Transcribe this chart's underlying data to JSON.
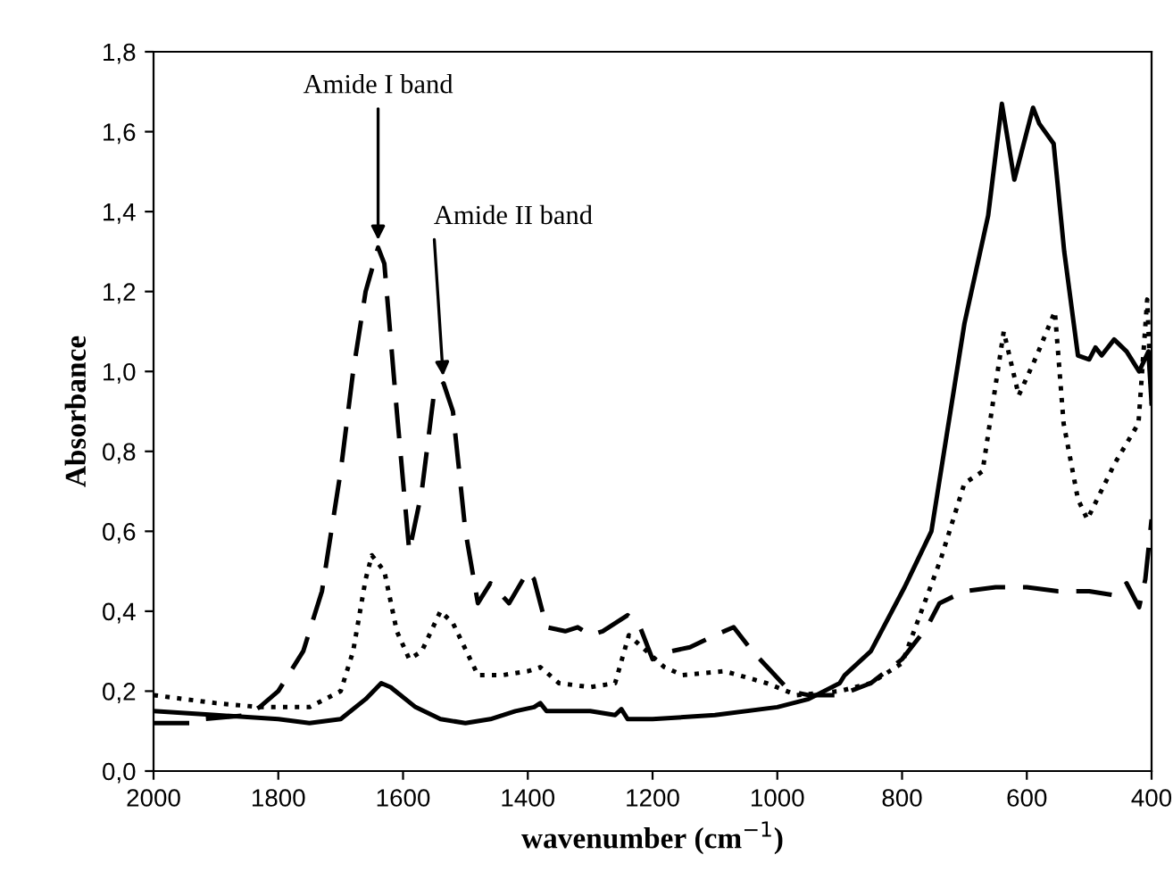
{
  "chart_data": {
    "type": "line",
    "xlabel": "wavenumber (cm$^{−1}$)",
    "ylabel": "Absorbance",
    "xlim": [
      2000,
      400
    ],
    "xticks": [
      2000,
      1800,
      1600,
      1400,
      1200,
      1000,
      800,
      600,
      400
    ],
    "ylim": [
      0,
      1.8
    ],
    "yticks": [
      {
        "value": 0,
        "label": "0,0"
      },
      {
        "value": 0.2,
        "label": "0,2"
      },
      {
        "value": 0.4,
        "label": "0,4"
      },
      {
        "value": 0.6,
        "label": "0,6"
      },
      {
        "value": 0.8,
        "label": "0,8"
      },
      {
        "value": 1.0,
        "label": "1,0"
      },
      {
        "value": 1.2,
        "label": "1,2"
      },
      {
        "value": 1.4,
        "label": "1,4"
      },
      {
        "value": 1.6,
        "label": "1,6"
      },
      {
        "value": 1.8,
        "label": "1,8"
      }
    ],
    "grid": false,
    "marker": "none",
    "series": [
      {
        "color": "#000000",
        "line_style": "solid",
        "x": [
          2000,
          1900,
          1800,
          1750,
          1700,
          1660,
          1635,
          1620,
          1580,
          1540,
          1500,
          1460,
          1420,
          1390,
          1380,
          1370,
          1300,
          1260,
          1250,
          1240,
          1200,
          1100,
          1000,
          950,
          900,
          892,
          850,
          796,
          753,
          700,
          662,
          640,
          620,
          600,
          590,
          580,
          557,
          540,
          518,
          500,
          490,
          480,
          460,
          440,
          420,
          405,
          400
        ],
        "values": [
          0.15,
          0.14,
          0.13,
          0.12,
          0.13,
          0.18,
          0.22,
          0.21,
          0.16,
          0.13,
          0.12,
          0.13,
          0.15,
          0.16,
          0.17,
          0.15,
          0.15,
          0.14,
          0.155,
          0.13,
          0.13,
          0.14,
          0.16,
          0.18,
          0.22,
          0.24,
          0.3,
          0.46,
          0.6,
          1.12,
          1.39,
          1.67,
          1.48,
          1.6,
          1.66,
          1.62,
          1.57,
          1.3,
          1.04,
          1.03,
          1.06,
          1.04,
          1.08,
          1.05,
          1.0,
          1.05,
          0.92
        ]
      },
      {
        "color": "#000000",
        "line_style": "dashed",
        "x": [
          2000,
          1930,
          1920,
          1850,
          1830,
          1800,
          1760,
          1730,
          1700,
          1680,
          1660,
          1640,
          1630,
          1610,
          1590,
          1570,
          1550,
          1535,
          1520,
          1500,
          1480,
          1460,
          1430,
          1400,
          1390,
          1370,
          1340,
          1320,
          1300,
          1280,
          1240,
          1220,
          1200,
          1170,
          1140,
          1100,
          1070,
          1040,
          1010,
          980,
          950,
          900,
          850,
          800,
          760,
          740,
          700,
          650,
          600,
          550,
          500,
          460,
          440,
          420,
          410,
          400
        ],
        "values": [
          0.12,
          0.12,
          0.13,
          0.14,
          0.16,
          0.2,
          0.3,
          0.45,
          0.75,
          1.0,
          1.2,
          1.31,
          1.27,
          0.9,
          0.55,
          0.7,
          0.95,
          0.97,
          0.9,
          0.6,
          0.42,
          0.47,
          0.42,
          0.5,
          0.48,
          0.36,
          0.35,
          0.36,
          0.34,
          0.35,
          0.39,
          0.36,
          0.28,
          0.3,
          0.31,
          0.34,
          0.36,
          0.3,
          0.25,
          0.2,
          0.19,
          0.19,
          0.22,
          0.28,
          0.36,
          0.42,
          0.45,
          0.46,
          0.46,
          0.45,
          0.45,
          0.44,
          0.47,
          0.41,
          0.48,
          0.63
        ]
      },
      {
        "color": "#000000",
        "line_style": "dotted",
        "x": [
          2000,
          1900,
          1830,
          1750,
          1700,
          1680,
          1660,
          1650,
          1630,
          1610,
          1590,
          1570,
          1540,
          1520,
          1480,
          1440,
          1400,
          1380,
          1350,
          1300,
          1260,
          1238,
          1181,
          1152,
          1085,
          1017,
          969,
          900,
          850,
          800,
          738,
          700,
          671,
          637,
          613,
          584,
          555,
          541,
          518,
          503,
          459,
          421,
          407,
          400
        ],
        "values": [
          0.19,
          0.17,
          0.16,
          0.16,
          0.2,
          0.3,
          0.48,
          0.54,
          0.5,
          0.35,
          0.28,
          0.3,
          0.4,
          0.37,
          0.24,
          0.24,
          0.25,
          0.26,
          0.22,
          0.21,
          0.22,
          0.34,
          0.26,
          0.24,
          0.25,
          0.22,
          0.19,
          0.2,
          0.22,
          0.27,
          0.53,
          0.72,
          0.75,
          1.1,
          0.94,
          1.04,
          1.15,
          0.87,
          0.68,
          0.63,
          0.77,
          0.87,
          1.18,
          0.92
        ]
      }
    ],
    "annotations": [
      {
        "text": "Amide I band",
        "x": 1640,
        "y": 1.31
      },
      {
        "text": "Amide II band",
        "x": 1535,
        "y": 0.97
      }
    ]
  }
}
